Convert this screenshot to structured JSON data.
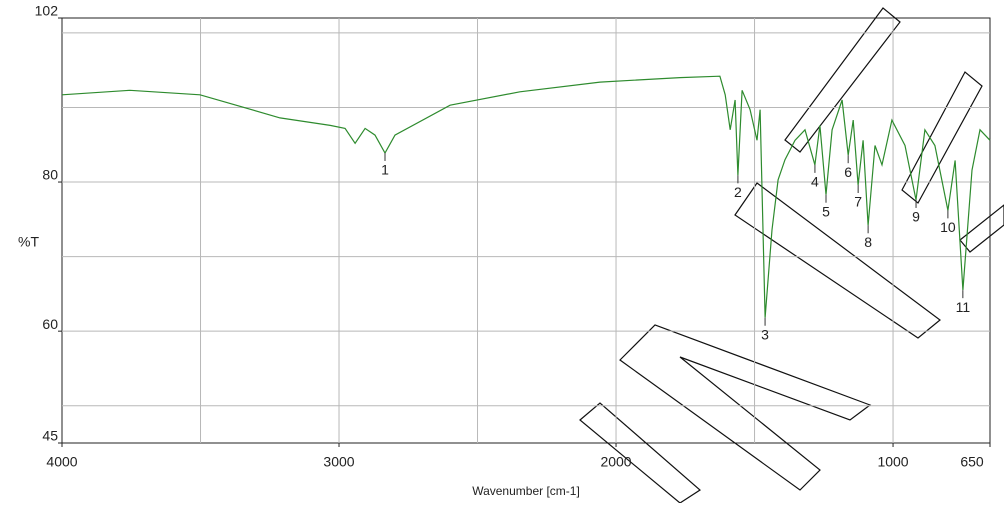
{
  "chart_data": {
    "type": "line",
    "color": "#2e8b2e",
    "x_label": "Wavenumber [cm-1]",
    "y_label": "%T",
    "x": [
      4000,
      3755,
      3502,
      3213,
      3032,
      2978,
      2942,
      2906,
      2870,
      2834,
      2798,
      2599,
      2347,
      2058,
      1769,
      1625,
      1606,
      1588,
      1570,
      1560,
      1545,
      1516,
      1491,
      1480,
      1462,
      1437,
      1415,
      1390,
      1354,
      1318,
      1282,
      1264,
      1242,
      1220,
      1184,
      1162,
      1144,
      1126,
      1108,
      1090,
      1065,
      1040,
      1004,
      957,
      917,
      885,
      849,
      802,
      776,
      748,
      715,
      686,
      650
    ],
    "values": [
      91.7,
      92.3,
      91.7,
      88.6,
      87.6,
      87.2,
      85.2,
      87.2,
      86.3,
      83.9,
      86.3,
      90.3,
      92.1,
      93.4,
      94.0,
      94.2,
      91.7,
      87.0,
      91.0,
      80.9,
      92.3,
      89.7,
      85.6,
      89.7,
      61.8,
      73.6,
      80.3,
      83.0,
      85.6,
      87.0,
      82.3,
      87.6,
      78.3,
      87.0,
      91.0,
      83.6,
      88.3,
      79.6,
      85.6,
      74.2,
      84.9,
      82.3,
      88.3,
      84.9,
      77.6,
      87.0,
      84.9,
      76.2,
      82.9,
      65.5,
      81.6,
      87.0,
      85.6
    ],
    "annotations": [
      {
        "text": "1",
        "x": 2834,
        "y": 83.9
      },
      {
        "text": "2",
        "x": 1560,
        "y": 80.9
      },
      {
        "text": "3",
        "x": 1462,
        "y": 61.8
      },
      {
        "text": "4",
        "x": 1282,
        "y": 82.3
      },
      {
        "text": "5",
        "x": 1242,
        "y": 78.3
      },
      {
        "text": "6",
        "x": 1162,
        "y": 83.6
      },
      {
        "text": "7",
        "x": 1126,
        "y": 79.6
      },
      {
        "text": "8",
        "x": 1090,
        "y": 74.2
      },
      {
        "text": "9",
        "x": 917,
        "y": 77.6
      },
      {
        "text": "10",
        "x": 802,
        "y": 76.2
      },
      {
        "text": "11",
        "x": 748,
        "y": 65.5
      }
    ],
    "xlim": [
      4000,
      650
    ],
    "ylim": [
      45,
      102
    ],
    "xticks": [
      4000,
      3000,
      2000,
      1000,
      650
    ],
    "yticks": [
      45,
      60,
      80,
      102
    ],
    "xgrid": [
      3500,
      3000,
      2500,
      2000,
      1500,
      1000
    ],
    "ygrid": [
      50,
      60,
      70,
      80,
      90,
      100
    ],
    "grid": true
  }
}
